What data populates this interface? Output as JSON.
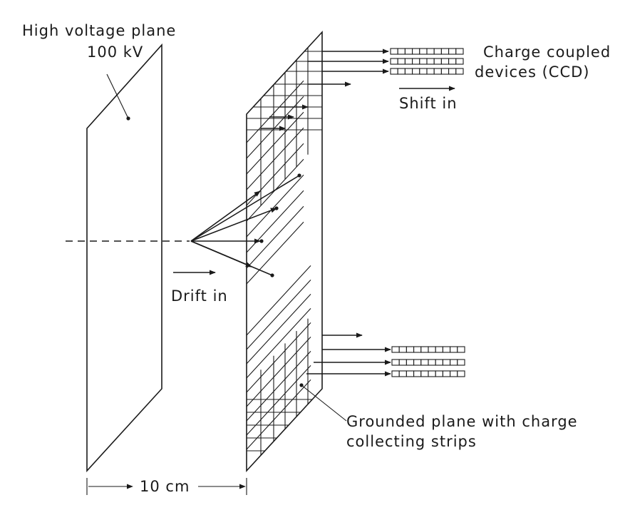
{
  "labels": {
    "high_voltage_plane": "High voltage plane",
    "voltage": "100 kV",
    "ccd": [
      "Charge coupled",
      "devices (CCD)"
    ],
    "shift_in": "Shift in",
    "drift_in": "Drift in",
    "grounded_plane": [
      "Grounded plane with charge",
      "collecting strips"
    ],
    "distance": "10 cm"
  },
  "ccd_cells_per_register": 10
}
